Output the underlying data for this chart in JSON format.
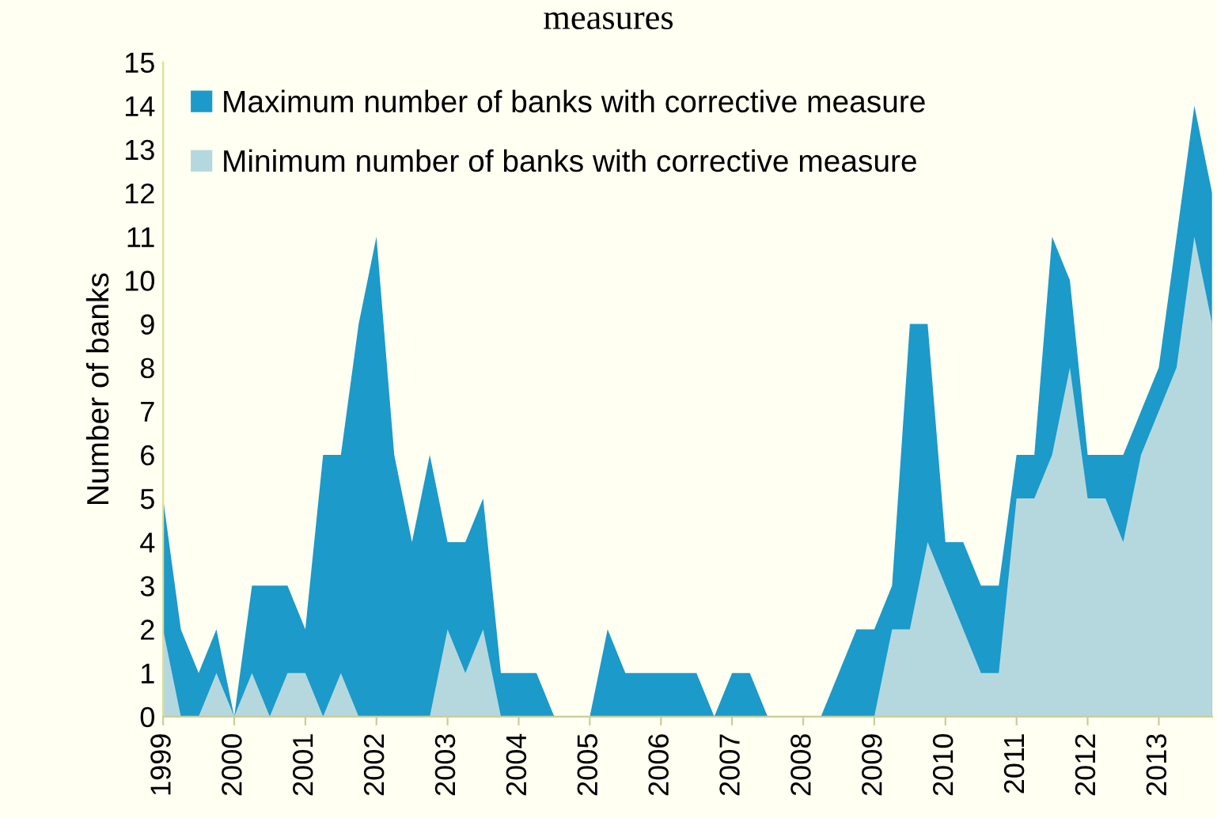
{
  "chart_data": {
    "type": "area",
    "title": "measures",
    "ylabel": "Number of banks",
    "categories": [
      "1999",
      null,
      null,
      null,
      "2000",
      null,
      null,
      null,
      "2001",
      null,
      null,
      null,
      "2002",
      null,
      null,
      null,
      "2003",
      null,
      null,
      null,
      "2004",
      null,
      null,
      null,
      "2005",
      null,
      null,
      null,
      "2006",
      null,
      null,
      null,
      "2007",
      null,
      null,
      null,
      "2008",
      null,
      null,
      null,
      "2009",
      null,
      null,
      null,
      "2010",
      null,
      null,
      null,
      "2011",
      null,
      null,
      null,
      "2012",
      null,
      null,
      null,
      "2013",
      null,
      null,
      null
    ],
    "series": [
      {
        "name": "Maximum number of banks with corrective measure",
        "color": "#1c9ac9",
        "values": [
          5,
          2,
          1,
          2,
          0,
          3,
          3,
          3,
          2,
          6,
          6,
          9,
          11,
          6,
          4,
          6,
          4,
          4,
          5,
          1,
          1,
          1,
          0,
          0,
          0,
          2,
          1,
          1,
          1,
          1,
          1,
          0,
          1,
          1,
          0,
          0,
          0,
          0,
          1,
          2,
          2,
          3,
          9,
          9,
          4,
          4,
          3,
          3,
          6,
          6,
          11,
          10,
          6,
          6,
          6,
          7,
          8,
          11,
          14,
          12
        ]
      },
      {
        "name": "Minimum number of banks with corrective measure",
        "color": "#b5d8df",
        "values": [
          2,
          0,
          0,
          1,
          0,
          1,
          0,
          1,
          1,
          0,
          1,
          0,
          0,
          0,
          0,
          0,
          2,
          1,
          2,
          0,
          0,
          0,
          0,
          0,
          0,
          0,
          0,
          0,
          0,
          0,
          0,
          0,
          0,
          0,
          0,
          0,
          0,
          0,
          0,
          0,
          0,
          2,
          2,
          4,
          3,
          2,
          1,
          1,
          5,
          5,
          6,
          8,
          5,
          5,
          4,
          6,
          7,
          8,
          11,
          9
        ]
      }
    ],
    "ylim": [
      0,
      15
    ],
    "yticks": [
      0,
      1,
      2,
      3,
      4,
      5,
      6,
      7,
      8,
      9,
      10,
      11,
      12,
      13,
      14,
      15
    ],
    "legend": "top left",
    "grid": false
  }
}
